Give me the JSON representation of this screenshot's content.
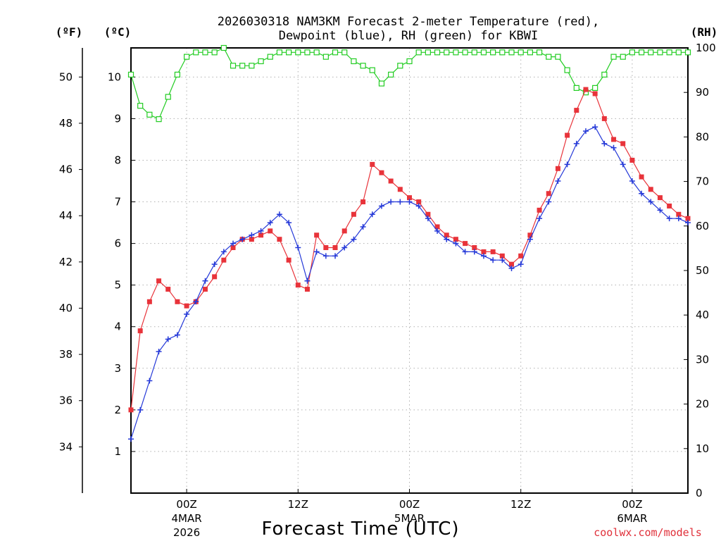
{
  "chart_data": {
    "type": "line",
    "title_line1": "2026030318 NAM3KM Forecast 2-meter Temperature (red),",
    "title_line2": "Dewpoint (blue), RH (green) for KBWI",
    "unit_f": "(ºF)",
    "unit_c": "(ºC)",
    "unit_rh": "(RH)",
    "xlabel": "Forecast Time (UTC)",
    "watermark": "coolwx.com/models",
    "c_ylim": [
      0,
      10.7
    ],
    "rh_ylim": [
      0,
      100
    ],
    "f_ticks": [
      "34",
      "36",
      "38",
      "40",
      "42",
      "44",
      "46",
      "48",
      "50"
    ],
    "c_ticks": [
      "1",
      "2",
      "3",
      "4",
      "5",
      "6",
      "7",
      "8",
      "9",
      "10"
    ],
    "rh_ticks": [
      "0",
      "10",
      "20",
      "30",
      "40",
      "50",
      "60",
      "70",
      "80",
      "90",
      "100"
    ],
    "x_hours_range": [
      0,
      60
    ],
    "x_ticks": [
      {
        "hour": 6,
        "label": "00Z",
        "sub1": "4MAR",
        "sub2": "2026"
      },
      {
        "hour": 18,
        "label": "12Z",
        "sub1": "",
        "sub2": ""
      },
      {
        "hour": 30,
        "label": "00Z",
        "sub1": "5MAR",
        "sub2": ""
      },
      {
        "hour": 42,
        "label": "12Z",
        "sub1": "",
        "sub2": ""
      },
      {
        "hour": 54,
        "label": "00Z",
        "sub1": "6MAR",
        "sub2": ""
      }
    ],
    "hours": [
      0,
      1,
      2,
      3,
      4,
      5,
      6,
      7,
      8,
      9,
      10,
      11,
      12,
      13,
      14,
      15,
      16,
      17,
      18,
      19,
      20,
      21,
      22,
      23,
      24,
      25,
      26,
      27,
      28,
      29,
      30,
      31,
      32,
      33,
      34,
      35,
      36,
      37,
      38,
      39,
      40,
      41,
      42,
      43,
      44,
      45,
      46,
      47,
      48,
      49,
      50,
      51,
      52,
      53,
      54,
      55,
      56,
      57,
      58,
      59,
      60
    ],
    "series": [
      {
        "name": "Temperature",
        "unit": "C",
        "color": "#e8333a",
        "marker": "filled-square",
        "values": [
          2.0,
          3.9,
          4.6,
          5.1,
          4.9,
          4.6,
          4.5,
          4.6,
          4.9,
          5.2,
          5.6,
          5.9,
          6.1,
          6.1,
          6.2,
          6.3,
          6.1,
          5.6,
          5.0,
          4.9,
          6.2,
          5.9,
          5.9,
          6.3,
          6.7,
          7.0,
          7.9,
          7.7,
          7.5,
          7.3,
          7.1,
          7.0,
          6.7,
          6.4,
          6.2,
          6.1,
          6.0,
          5.9,
          5.8,
          5.8,
          5.7,
          5.5,
          5.7,
          6.2,
          6.8,
          7.2,
          7.8,
          8.6,
          9.2,
          9.7,
          9.6,
          9.0,
          8.5,
          8.4,
          8.0,
          7.6,
          7.3,
          7.1,
          6.9,
          6.7,
          6.6
        ]
      },
      {
        "name": "Dewpoint",
        "unit": "C",
        "color": "#2438d8",
        "marker": "plus",
        "values": [
          1.3,
          2.0,
          2.7,
          3.4,
          3.7,
          3.8,
          4.3,
          4.6,
          5.1,
          5.5,
          5.8,
          6.0,
          6.1,
          6.2,
          6.3,
          6.5,
          6.7,
          6.5,
          5.9,
          5.1,
          5.8,
          5.7,
          5.7,
          5.9,
          6.1,
          6.4,
          6.7,
          6.9,
          7.0,
          7.0,
          7.0,
          6.9,
          6.6,
          6.3,
          6.1,
          6.0,
          5.8,
          5.8,
          5.7,
          5.6,
          5.6,
          5.4,
          5.5,
          6.1,
          6.6,
          7.0,
          7.5,
          7.9,
          8.4,
          8.7,
          8.8,
          8.4,
          8.3,
          7.9,
          7.5,
          7.2,
          7.0,
          6.8,
          6.6,
          6.6,
          6.5
        ]
      },
      {
        "name": "RH",
        "unit": "%",
        "color": "#22cc22",
        "marker": "open-square",
        "values": [
          94,
          87,
          85,
          84,
          89,
          94,
          98,
          99,
          99,
          99,
          100,
          96,
          96,
          96,
          97,
          98,
          99,
          99,
          99,
          99,
          99,
          98,
          99,
          99,
          97,
          96,
          95,
          92,
          94,
          96,
          97,
          99,
          99,
          99,
          99,
          99,
          99,
          99,
          99,
          99,
          99,
          99,
          99,
          99,
          99,
          98,
          98,
          95,
          91,
          90,
          91,
          94,
          98,
          98,
          99,
          99,
          99,
          99,
          99,
          99,
          99
        ]
      }
    ]
  }
}
